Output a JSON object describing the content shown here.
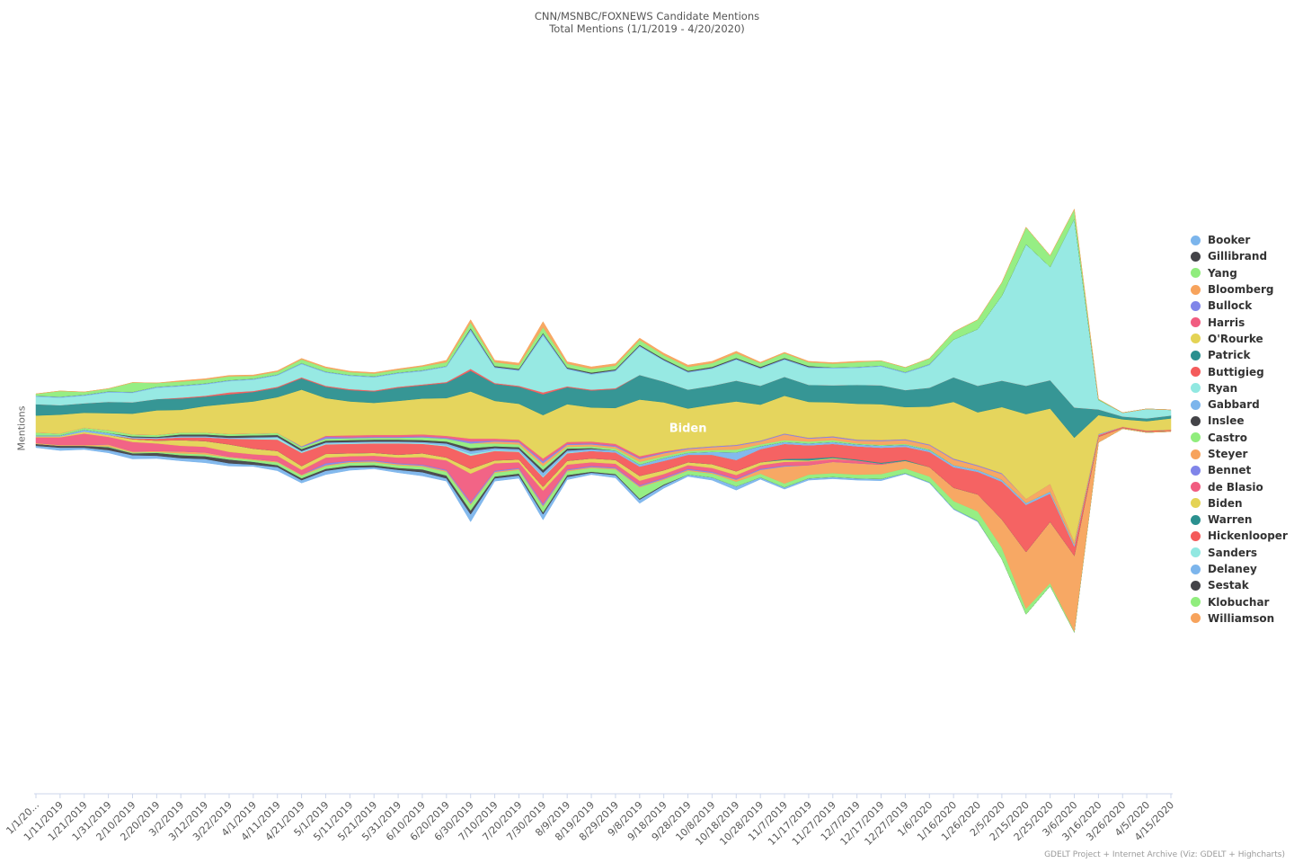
{
  "chart_data": {
    "type": "area",
    "title": "CNN/MSNBC/FOXNEWS Candidate Mentions",
    "subtitle": "Total Mentions (1/1/2019 - 4/20/2020)",
    "ylabel": "Mentions",
    "stacking": "streamgraph",
    "inline_label": "Biden",
    "credits": "GDELT Project + Internet Archive (Viz: GDELT + Highcharts)",
    "legend_position": "right",
    "categories": [
      "1/1/20...",
      "1/11/2019",
      "1/21/2019",
      "1/31/2019",
      "2/10/2019",
      "2/20/2019",
      "3/2/2019",
      "3/12/2019",
      "3/22/2019",
      "4/1/2019",
      "4/11/2019",
      "4/21/2019",
      "5/1/2019",
      "5/11/2019",
      "5/21/2019",
      "5/31/2019",
      "6/10/2019",
      "6/20/2019",
      "6/30/2019",
      "7/10/2019",
      "7/20/2019",
      "7/30/2019",
      "8/9/2019",
      "8/19/2019",
      "8/29/2019",
      "9/8/2019",
      "9/18/2019",
      "9/28/2019",
      "10/8/2019",
      "10/18/2019",
      "10/28/2019",
      "11/7/2019",
      "11/17/2019",
      "11/27/2019",
      "12/7/2019",
      "12/17/2019",
      "12/27/2019",
      "1/6/2020",
      "1/16/2020",
      "1/26/2020",
      "2/5/2020",
      "2/15/2020",
      "2/25/2020",
      "3/6/2020",
      "3/16/2020",
      "3/26/2020",
      "4/5/2020",
      "4/15/2020"
    ],
    "series": [
      {
        "name": "Booker",
        "color": "#7cb5ec",
        "values": [
          2,
          3,
          2,
          3,
          4,
          3,
          3,
          4,
          3,
          2,
          4,
          3,
          4,
          3,
          2,
          3,
          4,
          3,
          8,
          3,
          3,
          6,
          3,
          2,
          3,
          4,
          3,
          2,
          3,
          4,
          2,
          2,
          2,
          2,
          2,
          2,
          1,
          1,
          1,
          1,
          0,
          0,
          0,
          0,
          0,
          0,
          0,
          0
        ]
      },
      {
        "name": "Gillibrand",
        "color": "#434348",
        "values": [
          2,
          2,
          2,
          3,
          2,
          3,
          3,
          3,
          4,
          3,
          2,
          2,
          2,
          2,
          2,
          2,
          3,
          3,
          4,
          2,
          2,
          2,
          2,
          1,
          1,
          1,
          1,
          0,
          0,
          0,
          0,
          0,
          0,
          0,
          0,
          0,
          0,
          0,
          0,
          0,
          0,
          0,
          0,
          0,
          0,
          0,
          0,
          0
        ]
      },
      {
        "name": "Yang",
        "color": "#90ed7d",
        "values": [
          0,
          0,
          0,
          1,
          1,
          1,
          2,
          2,
          2,
          2,
          3,
          3,
          3,
          3,
          3,
          3,
          3,
          4,
          6,
          4,
          4,
          6,
          4,
          4,
          5,
          12,
          5,
          4,
          4,
          5,
          4,
          4,
          4,
          4,
          4,
          5,
          5,
          6,
          8,
          10,
          12,
          6,
          3,
          1,
          0,
          0,
          0,
          0
        ]
      },
      {
        "name": "Bloomberg",
        "color": "#f7a35c",
        "values": [
          1,
          1,
          1,
          2,
          1,
          1,
          2,
          2,
          1,
          1,
          1,
          1,
          1,
          1,
          1,
          1,
          1,
          1,
          1,
          1,
          1,
          1,
          1,
          1,
          1,
          1,
          1,
          1,
          1,
          2,
          4,
          18,
          10,
          12,
          12,
          10,
          8,
          10,
          14,
          18,
          30,
          60,
          65,
          80,
          6,
          1,
          1,
          1
        ]
      },
      {
        "name": "Bullock",
        "color": "#8085e9",
        "values": [
          0,
          0,
          0,
          0,
          0,
          0,
          0,
          0,
          0,
          0,
          0,
          0,
          2,
          1,
          1,
          1,
          1,
          1,
          2,
          1,
          1,
          2,
          1,
          1,
          1,
          1,
          1,
          1,
          1,
          1,
          1,
          1,
          0,
          0,
          0,
          0,
          0,
          0,
          0,
          0,
          0,
          0,
          0,
          0,
          0,
          0,
          0,
          0
        ]
      },
      {
        "name": "Harris",
        "color": "#f15c80",
        "values": [
          6,
          8,
          12,
          8,
          10,
          8,
          6,
          6,
          5,
          5,
          6,
          5,
          6,
          5,
          5,
          6,
          8,
          10,
          30,
          8,
          6,
          14,
          5,
          4,
          4,
          5,
          4,
          4,
          4,
          4,
          4,
          4,
          4,
          3,
          3,
          1,
          0,
          0,
          0,
          0,
          0,
          0,
          0,
          0,
          0,
          0,
          0,
          0
        ]
      },
      {
        "name": "O'Rourke",
        "color": "#e4d354",
        "values": [
          1,
          1,
          2,
          2,
          3,
          3,
          6,
          6,
          8,
          6,
          5,
          4,
          4,
          3,
          3,
          3,
          4,
          3,
          5,
          3,
          3,
          4,
          4,
          4,
          4,
          5,
          4,
          3,
          4,
          4,
          3,
          2,
          1,
          1,
          0,
          0,
          0,
          0,
          0,
          0,
          0,
          0,
          0,
          0,
          0,
          0,
          0,
          0
        ]
      },
      {
        "name": "Patrick",
        "color": "#2b908f",
        "values": [
          0,
          0,
          0,
          0,
          0,
          0,
          0,
          0,
          0,
          0,
          0,
          0,
          0,
          0,
          0,
          0,
          0,
          0,
          0,
          0,
          0,
          0,
          0,
          0,
          0,
          0,
          0,
          0,
          0,
          0,
          0,
          1,
          2,
          1,
          1,
          1,
          1,
          0,
          0,
          0,
          0,
          0,
          0,
          0,
          0,
          0,
          0,
          0
        ]
      },
      {
        "name": "Buttigieg",
        "color": "#f45b5b",
        "values": [
          0,
          0,
          0,
          0,
          1,
          2,
          3,
          4,
          6,
          10,
          12,
          14,
          10,
          10,
          10,
          12,
          10,
          12,
          14,
          10,
          8,
          10,
          8,
          8,
          8,
          10,
          10,
          8,
          10,
          12,
          14,
          16,
          14,
          14,
          14,
          16,
          14,
          16,
          22,
          24,
          40,
          50,
          30,
          10,
          2,
          1,
          1,
          1
        ]
      },
      {
        "name": "Ryan",
        "color": "#91e8e1",
        "values": [
          0,
          0,
          0,
          0,
          0,
          0,
          0,
          0,
          0,
          1,
          2,
          1,
          1,
          1,
          1,
          1,
          1,
          1,
          2,
          1,
          1,
          1,
          1,
          0,
          0,
          0,
          0,
          0,
          0,
          0,
          0,
          0,
          0,
          0,
          0,
          0,
          0,
          0,
          0,
          0,
          0,
          0,
          0,
          0,
          0,
          0,
          0,
          0
        ]
      },
      {
        "name": "Gabbard",
        "color": "#7cb5ec",
        "values": [
          1,
          1,
          2,
          2,
          1,
          1,
          1,
          1,
          1,
          1,
          1,
          1,
          1,
          1,
          1,
          1,
          1,
          2,
          3,
          2,
          2,
          4,
          2,
          2,
          2,
          2,
          3,
          2,
          3,
          8,
          3,
          2,
          2,
          2,
          2,
          2,
          2,
          2,
          2,
          2,
          2,
          2,
          2,
          2,
          1,
          0,
          0,
          0
        ]
      },
      {
        "name": "Inslee",
        "color": "#434348",
        "values": [
          0,
          0,
          0,
          0,
          1,
          1,
          2,
          2,
          2,
          2,
          2,
          2,
          2,
          2,
          2,
          2,
          2,
          2,
          3,
          2,
          2,
          3,
          2,
          1,
          0,
          0,
          0,
          0,
          0,
          0,
          0,
          0,
          0,
          0,
          0,
          0,
          0,
          0,
          0,
          0,
          0,
          0,
          0,
          0,
          0,
          0,
          0,
          0
        ]
      },
      {
        "name": "Castro",
        "color": "#90ed7d",
        "values": [
          3,
          2,
          2,
          3,
          2,
          2,
          2,
          2,
          2,
          2,
          2,
          2,
          2,
          2,
          2,
          2,
          3,
          3,
          5,
          3,
          3,
          4,
          2,
          2,
          2,
          3,
          2,
          2,
          2,
          3,
          2,
          2,
          2,
          2,
          1,
          1,
          1,
          1,
          0,
          0,
          0,
          0,
          0,
          0,
          0,
          0,
          0,
          0
        ]
      },
      {
        "name": "Steyer",
        "color": "#f7a35c",
        "values": [
          0,
          0,
          0,
          0,
          0,
          0,
          0,
          0,
          0,
          0,
          0,
          0,
          0,
          0,
          0,
          0,
          0,
          0,
          0,
          2,
          2,
          3,
          2,
          2,
          2,
          3,
          3,
          2,
          3,
          4,
          3,
          6,
          3,
          3,
          3,
          4,
          4,
          4,
          6,
          4,
          6,
          4,
          8,
          3,
          0,
          0,
          0,
          0
        ]
      },
      {
        "name": "Bennet",
        "color": "#8085e9",
        "values": [
          0,
          0,
          0,
          0,
          0,
          0,
          0,
          0,
          0,
          0,
          0,
          1,
          2,
          1,
          1,
          1,
          1,
          1,
          2,
          1,
          1,
          2,
          1,
          1,
          1,
          1,
          1,
          1,
          1,
          1,
          1,
          1,
          1,
          1,
          1,
          1,
          1,
          1,
          1,
          1,
          1,
          0,
          0,
          0,
          0,
          0,
          0,
          0
        ]
      },
      {
        "name": "de Blasio",
        "color": "#f15c80",
        "values": [
          0,
          0,
          0,
          0,
          0,
          0,
          0,
          0,
          0,
          0,
          0,
          0,
          1,
          2,
          2,
          2,
          2,
          2,
          3,
          2,
          2,
          3,
          2,
          2,
          2,
          2,
          1,
          0,
          0,
          0,
          0,
          0,
          0,
          0,
          0,
          0,
          0,
          0,
          0,
          0,
          0,
          0,
          0,
          0,
          0,
          0,
          0,
          0
        ]
      },
      {
        "name": "Biden",
        "color": "#e4d354",
        "values": [
          18,
          20,
          16,
          18,
          22,
          26,
          24,
          28,
          32,
          34,
          38,
          60,
          40,
          36,
          34,
          36,
          38,
          40,
          50,
          40,
          38,
          46,
          40,
          36,
          38,
          60,
          52,
          42,
          44,
          46,
          38,
          40,
          38,
          36,
          38,
          38,
          34,
          40,
          60,
          56,
          70,
          90,
          80,
          110,
          20,
          8,
          10,
          12
        ]
      },
      {
        "name": "Warren",
        "color": "#2b908f",
        "values": [
          12,
          10,
          10,
          12,
          12,
          12,
          12,
          10,
          10,
          10,
          10,
          12,
          12,
          12,
          12,
          14,
          14,
          16,
          22,
          18,
          18,
          22,
          18,
          18,
          20,
          26,
          22,
          20,
          20,
          22,
          20,
          20,
          18,
          18,
          20,
          20,
          18,
          20,
          26,
          28,
          28,
          30,
          30,
          32,
          6,
          3,
          3,
          3
        ]
      },
      {
        "name": "Hickenlooper",
        "color": "#f45b5b",
        "values": [
          0,
          0,
          0,
          0,
          0,
          0,
          1,
          1,
          2,
          1,
          1,
          1,
          1,
          1,
          1,
          1,
          1,
          1,
          2,
          1,
          1,
          2,
          1,
          1,
          1,
          0,
          0,
          0,
          0,
          0,
          0,
          0,
          0,
          0,
          0,
          0,
          0,
          0,
          0,
          0,
          0,
          0,
          0,
          0,
          0,
          0,
          0,
          0
        ]
      },
      {
        "name": "Sanders",
        "color": "#91e8e1",
        "values": [
          8,
          8,
          8,
          10,
          10,
          12,
          12,
          12,
          12,
          12,
          12,
          14,
          14,
          14,
          14,
          14,
          14,
          16,
          40,
          16,
          16,
          60,
          18,
          16,
          18,
          30,
          22,
          18,
          18,
          22,
          18,
          18,
          18,
          18,
          18,
          20,
          18,
          24,
          40,
          60,
          90,
          150,
          120,
          200,
          10,
          4,
          10,
          6
        ]
      },
      {
        "name": "Delaney",
        "color": "#7cb5ec",
        "values": [
          1,
          1,
          1,
          1,
          1,
          1,
          1,
          1,
          1,
          1,
          1,
          1,
          1,
          1,
          1,
          1,
          1,
          1,
          2,
          1,
          1,
          2,
          1,
          1,
          1,
          1,
          1,
          1,
          1,
          1,
          1,
          1,
          1,
          1,
          1,
          1,
          1,
          1,
          0,
          0,
          0,
          0,
          0,
          0,
          0,
          0,
          0,
          0
        ]
      },
      {
        "name": "Sestak",
        "color": "#434348",
        "values": [
          0,
          0,
          0,
          0,
          0,
          0,
          0,
          0,
          0,
          0,
          0,
          0,
          0,
          0,
          0,
          0,
          0,
          0,
          1,
          1,
          1,
          1,
          1,
          1,
          1,
          1,
          1,
          1,
          1,
          1,
          1,
          1,
          1,
          0,
          0,
          0,
          0,
          0,
          0,
          0,
          0,
          0,
          0,
          0,
          0,
          0,
          0,
          0
        ]
      },
      {
        "name": "Klobuchar",
        "color": "#90ed7d",
        "values": [
          2,
          6,
          3,
          3,
          10,
          4,
          4,
          4,
          4,
          3,
          3,
          4,
          4,
          3,
          3,
          3,
          4,
          4,
          6,
          4,
          4,
          6,
          4,
          4,
          4,
          5,
          4,
          4,
          4,
          5,
          4,
          5,
          4,
          4,
          5,
          5,
          5,
          6,
          8,
          10,
          14,
          18,
          12,
          10,
          1,
          0,
          0,
          0
        ]
      },
      {
        "name": "Williamson",
        "color": "#f7a35c",
        "values": [
          0,
          0,
          0,
          0,
          0,
          0,
          1,
          1,
          1,
          1,
          1,
          1,
          1,
          1,
          1,
          1,
          1,
          2,
          3,
          2,
          2,
          6,
          2,
          2,
          2,
          2,
          2,
          2,
          2,
          2,
          1,
          1,
          1,
          1,
          1,
          0,
          0,
          0,
          0,
          0,
          0,
          0,
          0,
          0,
          0,
          0,
          0,
          0
        ]
      }
    ]
  }
}
